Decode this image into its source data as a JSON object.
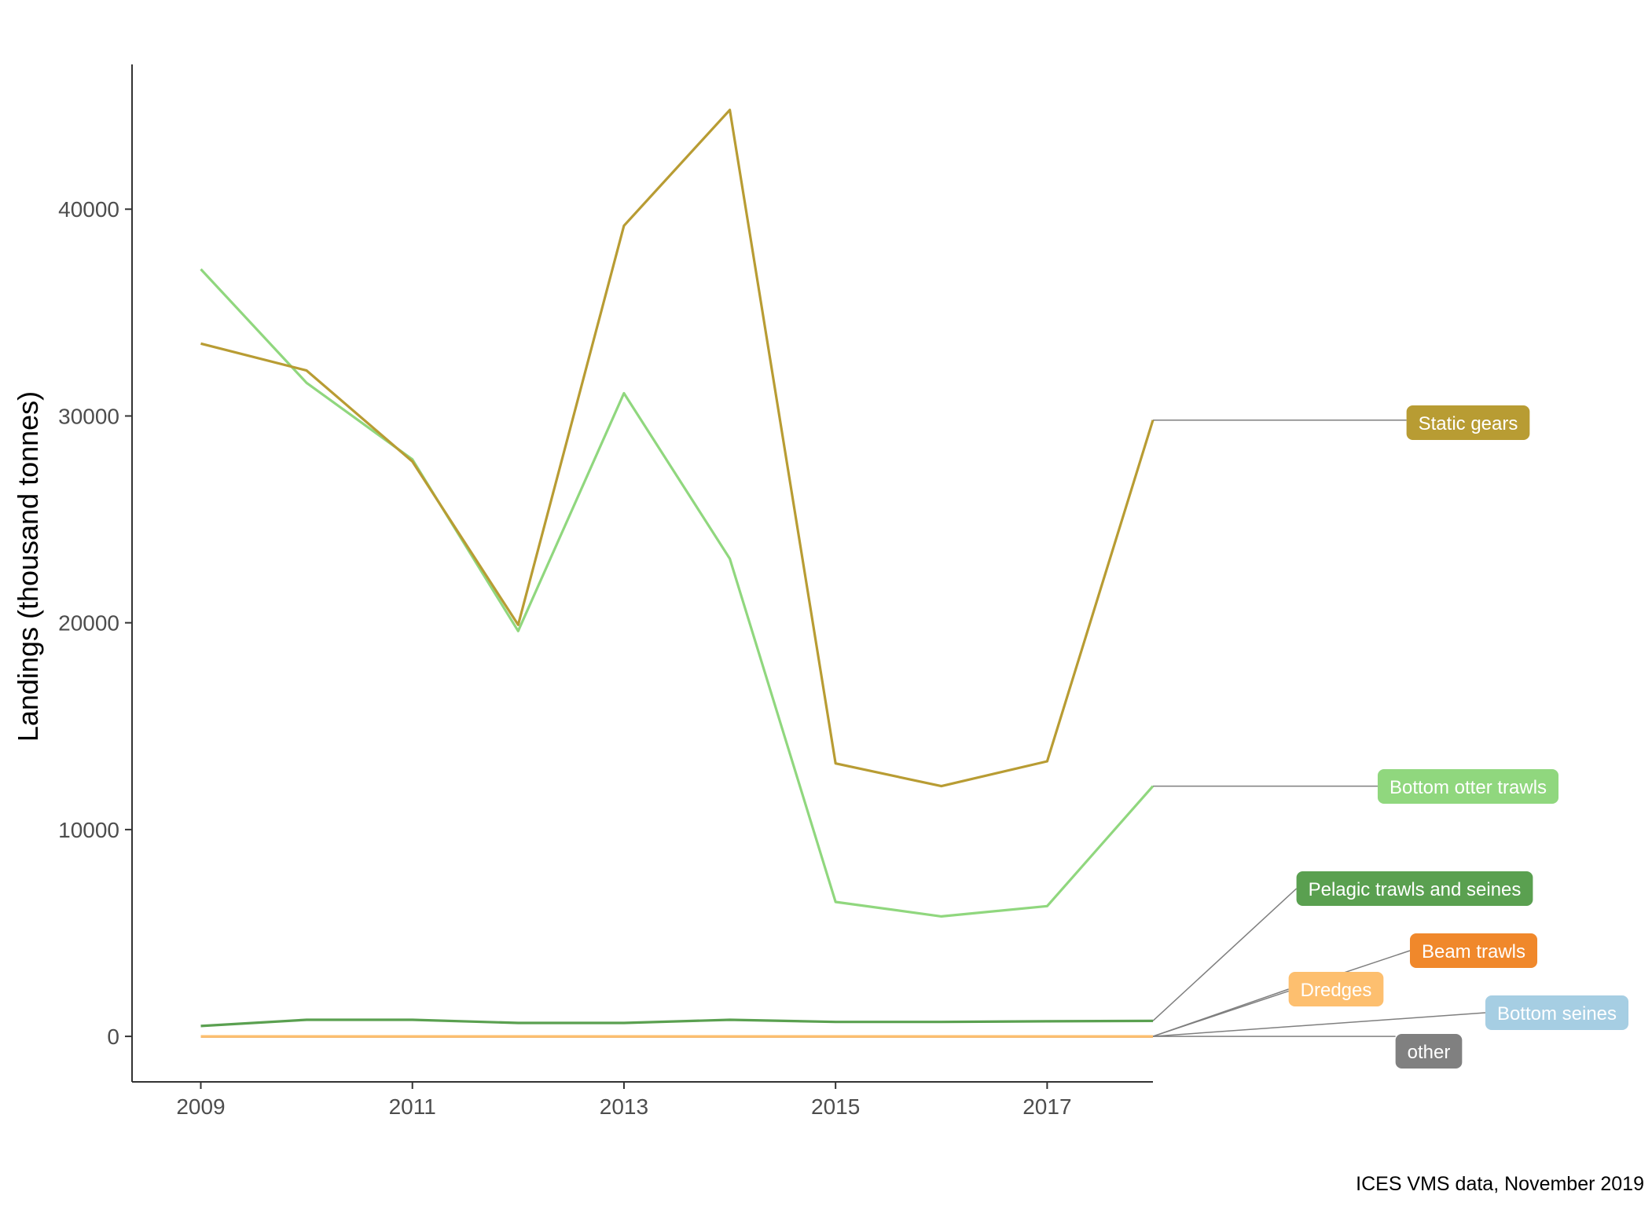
{
  "chart_data": {
    "type": "line",
    "title": "",
    "xlabel": "",
    "ylabel": "Landings (thousand tonnes)",
    "caption": "ICES VMS data, November 2019",
    "x": [
      2009,
      2010,
      2011,
      2012,
      2013,
      2014,
      2015,
      2016,
      2017,
      2018
    ],
    "xlim": [
      2008.35,
      2018.0
    ],
    "ylim": [
      -2200,
      47000
    ],
    "xticks": [
      2009,
      2011,
      2013,
      2015,
      2017
    ],
    "xtick_labels": [
      "2009",
      "2011",
      "2013",
      "2015",
      "2017"
    ],
    "yticks": [
      0,
      10000,
      20000,
      30000,
      40000
    ],
    "ytick_labels": [
      "0",
      "10000",
      "20000",
      "30000",
      "40000"
    ],
    "grid": false,
    "legend": "direct labels at right end of lines",
    "series": [
      {
        "name": "other",
        "color": "#808080",
        "values": [
          0,
          0,
          0,
          0,
          0,
          0,
          0,
          0,
          0,
          0
        ]
      },
      {
        "name": "Bottom seines",
        "color": "#a6cee3",
        "values": [
          0,
          0,
          0,
          0,
          0,
          0,
          0,
          0,
          0,
          0
        ]
      },
      {
        "name": "Beam trawls",
        "color": "#f0882b",
        "values": [
          0,
          0,
          0,
          0,
          0,
          0,
          0,
          0,
          0,
          0
        ]
      },
      {
        "name": "Dredges",
        "color": "#fdbf6f",
        "values": [
          0,
          0,
          0,
          0,
          0,
          0,
          0,
          0,
          0,
          0
        ]
      },
      {
        "name": "Pelagic trawls and seines",
        "color": "#5aa050",
        "values": [
          500,
          800,
          800,
          650,
          650,
          800,
          700,
          700,
          730,
          750
        ]
      },
      {
        "name": "Bottom otter trawls",
        "color": "#90d77e",
        "values": [
          37100,
          31600,
          27900,
          19600,
          31100,
          23100,
          6500,
          5800,
          6300,
          12100
        ]
      },
      {
        "name": "Static gears",
        "color": "#b89c33",
        "values": [
          33500,
          32200,
          27800,
          19900,
          39200,
          44800,
          13200,
          12100,
          13300,
          29800
        ]
      }
    ],
    "labels": [
      {
        "series": "Static gears",
        "text": "Static gears",
        "color": "#b89c33"
      },
      {
        "series": "Bottom otter trawls",
        "text": "Bottom otter trawls",
        "color": "#90d77e"
      },
      {
        "series": "Pelagic trawls and seines",
        "text": "Pelagic trawls and seines",
        "color": "#5aa050"
      },
      {
        "series": "Beam trawls",
        "text": "Beam trawls",
        "color": "#f0882b"
      },
      {
        "series": "Dredges",
        "text": "Dredges",
        "color": "#fdbf6f"
      },
      {
        "series": "Bottom seines",
        "text": "Bottom seines",
        "color": "#a6cee3"
      },
      {
        "series": "other",
        "text": "other",
        "color": "#808080"
      }
    ]
  }
}
